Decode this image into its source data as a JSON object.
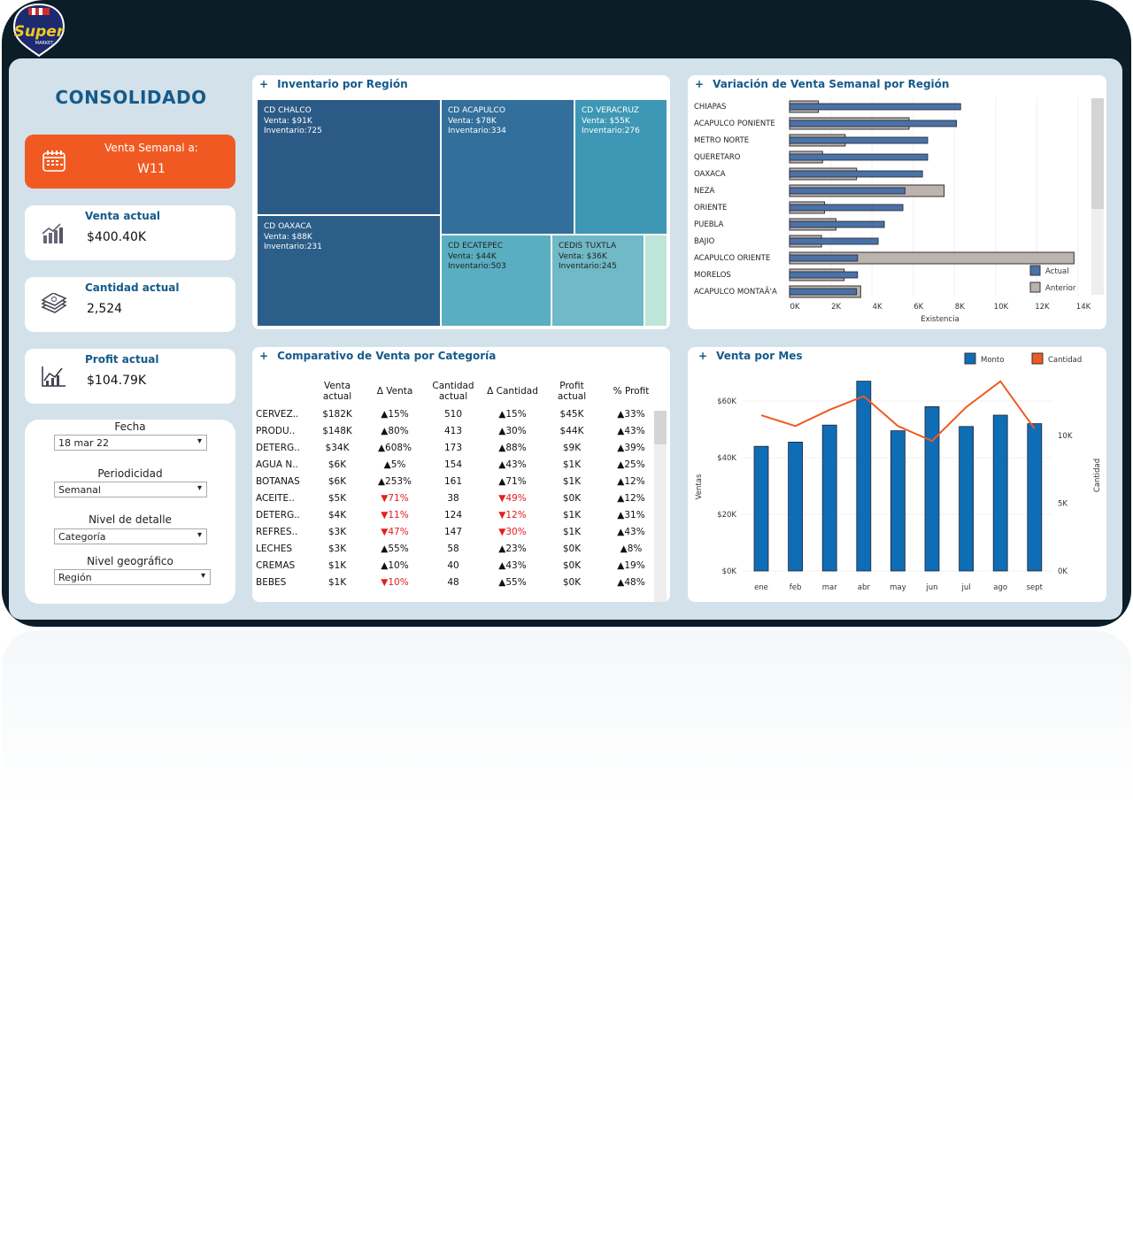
{
  "logo": {
    "text": "Super",
    "sub": "MARKET"
  },
  "sidebar": {
    "title": "CONSOLIDADO",
    "week": {
      "label": "Venta Semanal a:",
      "value": "W11"
    },
    "kpis": [
      {
        "label": "Venta actual",
        "value": "$400.40K"
      },
      {
        "label": "Cantidad actual",
        "value": "2,524"
      },
      {
        "label": "Profit actual",
        "value": "$104.79K"
      }
    ],
    "filters": [
      {
        "label": "Fecha",
        "value": "18 mar 22"
      },
      {
        "label": "Periodicidad",
        "value": "Semanal"
      },
      {
        "label": "Nivel de detalle",
        "value": "Categoría"
      },
      {
        "label": "Nivel geográfico",
        "value": "Región"
      }
    ]
  },
  "treemap": {
    "plus": "+",
    "title": "Inventario por Región",
    "cells": [
      {
        "name": "CD CHALCO",
        "venta": "Venta: $91K",
        "inv": "Inventario:725"
      },
      {
        "name": "CD OAXACA",
        "venta": "Venta: $88K",
        "inv": "Inventario:231"
      },
      {
        "name": "CD ACAPULCO",
        "venta": "Venta: $78K",
        "inv": "Inventario:334"
      },
      {
        "name": "CD VERACRUZ",
        "venta": "Venta: $55K",
        "inv": "Inventario:276"
      },
      {
        "name": "CD ECATEPEC",
        "venta": "Venta: $44K",
        "inv": "Inventario:503"
      },
      {
        "name": "CEDIS TUXTLA",
        "venta": "Venta: $36K",
        "inv": "Inventario:245"
      }
    ]
  },
  "table": {
    "plus": "+",
    "title": "Comparativo de Venta por Categoría",
    "headers": [
      "",
      "Venta actual",
      "Δ Venta",
      "Cantidad actual",
      "Δ Cantidad",
      "Profit actual",
      "% Profit"
    ],
    "rows": [
      [
        "CERVEZ..",
        "$182K",
        "15%",
        "510",
        "15%",
        "$45K",
        "33%"
      ],
      [
        "PRODU..",
        "$148K",
        "80%",
        "413",
        "30%",
        "$44K",
        "43%"
      ],
      [
        "DETERG..",
        "$34K",
        "608%",
        "173",
        "88%",
        "$9K",
        "39%"
      ],
      [
        "AGUA N..",
        "$6K",
        "5%",
        "154",
        "43%",
        "$1K",
        "25%"
      ],
      [
        "BOTANAS",
        "$6K",
        "253%",
        "161",
        "71%",
        "$1K",
        "12%"
      ],
      [
        "ACEITE..",
        "$5K",
        "71%",
        "38",
        "49%",
        "$0K",
        "12%"
      ],
      [
        "DETERG..",
        "$4K",
        "11%",
        "124",
        "12%",
        "$1K",
        "31%"
      ],
      [
        "REFRES..",
        "$3K",
        "47%",
        "147",
        "30%",
        "$1K",
        "43%"
      ],
      [
        "LECHES",
        "$3K",
        "55%",
        "58",
        "23%",
        "$0K",
        "8%"
      ],
      [
        "CREMAS",
        "$1K",
        "10%",
        "40",
        "43%",
        "$0K",
        "19%"
      ],
      [
        "BEBES",
        "$1K",
        "10%",
        "48",
        "55%",
        "$0K",
        "48%"
      ]
    ],
    "directions": [
      [
        "up",
        "up",
        "up"
      ],
      [
        "up",
        "up",
        "up"
      ],
      [
        "up",
        "up",
        "up"
      ],
      [
        "up",
        "up",
        "up"
      ],
      [
        "up",
        "up",
        "up"
      ],
      [
        "dn",
        "dn",
        "up"
      ],
      [
        "dn",
        "dn",
        "up"
      ],
      [
        "dn",
        "dn",
        "up"
      ],
      [
        "up",
        "up",
        "up"
      ],
      [
        "up",
        "up",
        "up"
      ],
      [
        "dn",
        "up",
        "up"
      ]
    ]
  },
  "chart_data": [
    {
      "type": "bar",
      "orientation": "horizontal",
      "plus": "+",
      "title": "Variación de Venta Semanal por Región",
      "categories": [
        "CHIAPAS",
        "ACAPULCO PONIENTE",
        "METRO NORTE",
        "QUERETARO",
        "OAXACA",
        "NEZA",
        "ORIENTE",
        "PUEBLA",
        "BAJIO",
        "ACAPULCO ORIENTE",
        "MORELOS",
        "ACAPULCO MONTAÃ'A"
      ],
      "series": [
        {
          "name": "Actual",
          "color": "#4a72a6",
          "values": [
            8.3,
            8.1,
            6.7,
            6.7,
            6.45,
            5.6,
            5.5,
            4.6,
            4.3,
            3.3,
            3.3,
            3.25
          ]
        },
        {
          "name": "Anterior",
          "color": "#bcb2ae",
          "values": [
            1.4,
            5.8,
            2.7,
            1.6,
            3.25,
            7.5,
            1.7,
            2.25,
            1.55,
            13.8,
            2.65,
            3.45
          ]
        }
      ],
      "xlabel": "Existencia",
      "xlim": [
        0,
        14
      ],
      "xticks": [
        "0K",
        "2K",
        "4K",
        "6K",
        "8K",
        "10K",
        "12K",
        "14K"
      ]
    },
    {
      "type": "bar+line",
      "plus": "+",
      "title": "Venta por Mes",
      "categories": [
        "ene",
        "feb",
        "mar",
        "abr",
        "may",
        "jun",
        "jul",
        "ago",
        "sept"
      ],
      "series": [
        {
          "name": "Monto",
          "color": "#0f6db5",
          "axis": "left",
          "values": [
            44,
            45.5,
            51.5,
            67,
            49.5,
            58,
            51,
            55,
            52
          ]
        },
        {
          "name": "Cantidad",
          "color": "#f05a22",
          "axis": "right",
          "values": [
            11.5,
            10.7,
            11.9,
            12.9,
            10.7,
            9.6,
            12.1,
            14.0,
            10.5
          ]
        }
      ],
      "ylabel": "Ventas",
      "y2label": "Cantidad",
      "ylim": [
        0,
        70
      ],
      "y2lim": [
        0,
        14.3
      ],
      "yticks": [
        "$0K",
        "$20K",
        "$40K",
        "$60K"
      ],
      "y2ticks": [
        "0K",
        "5K",
        "10K"
      ]
    }
  ]
}
